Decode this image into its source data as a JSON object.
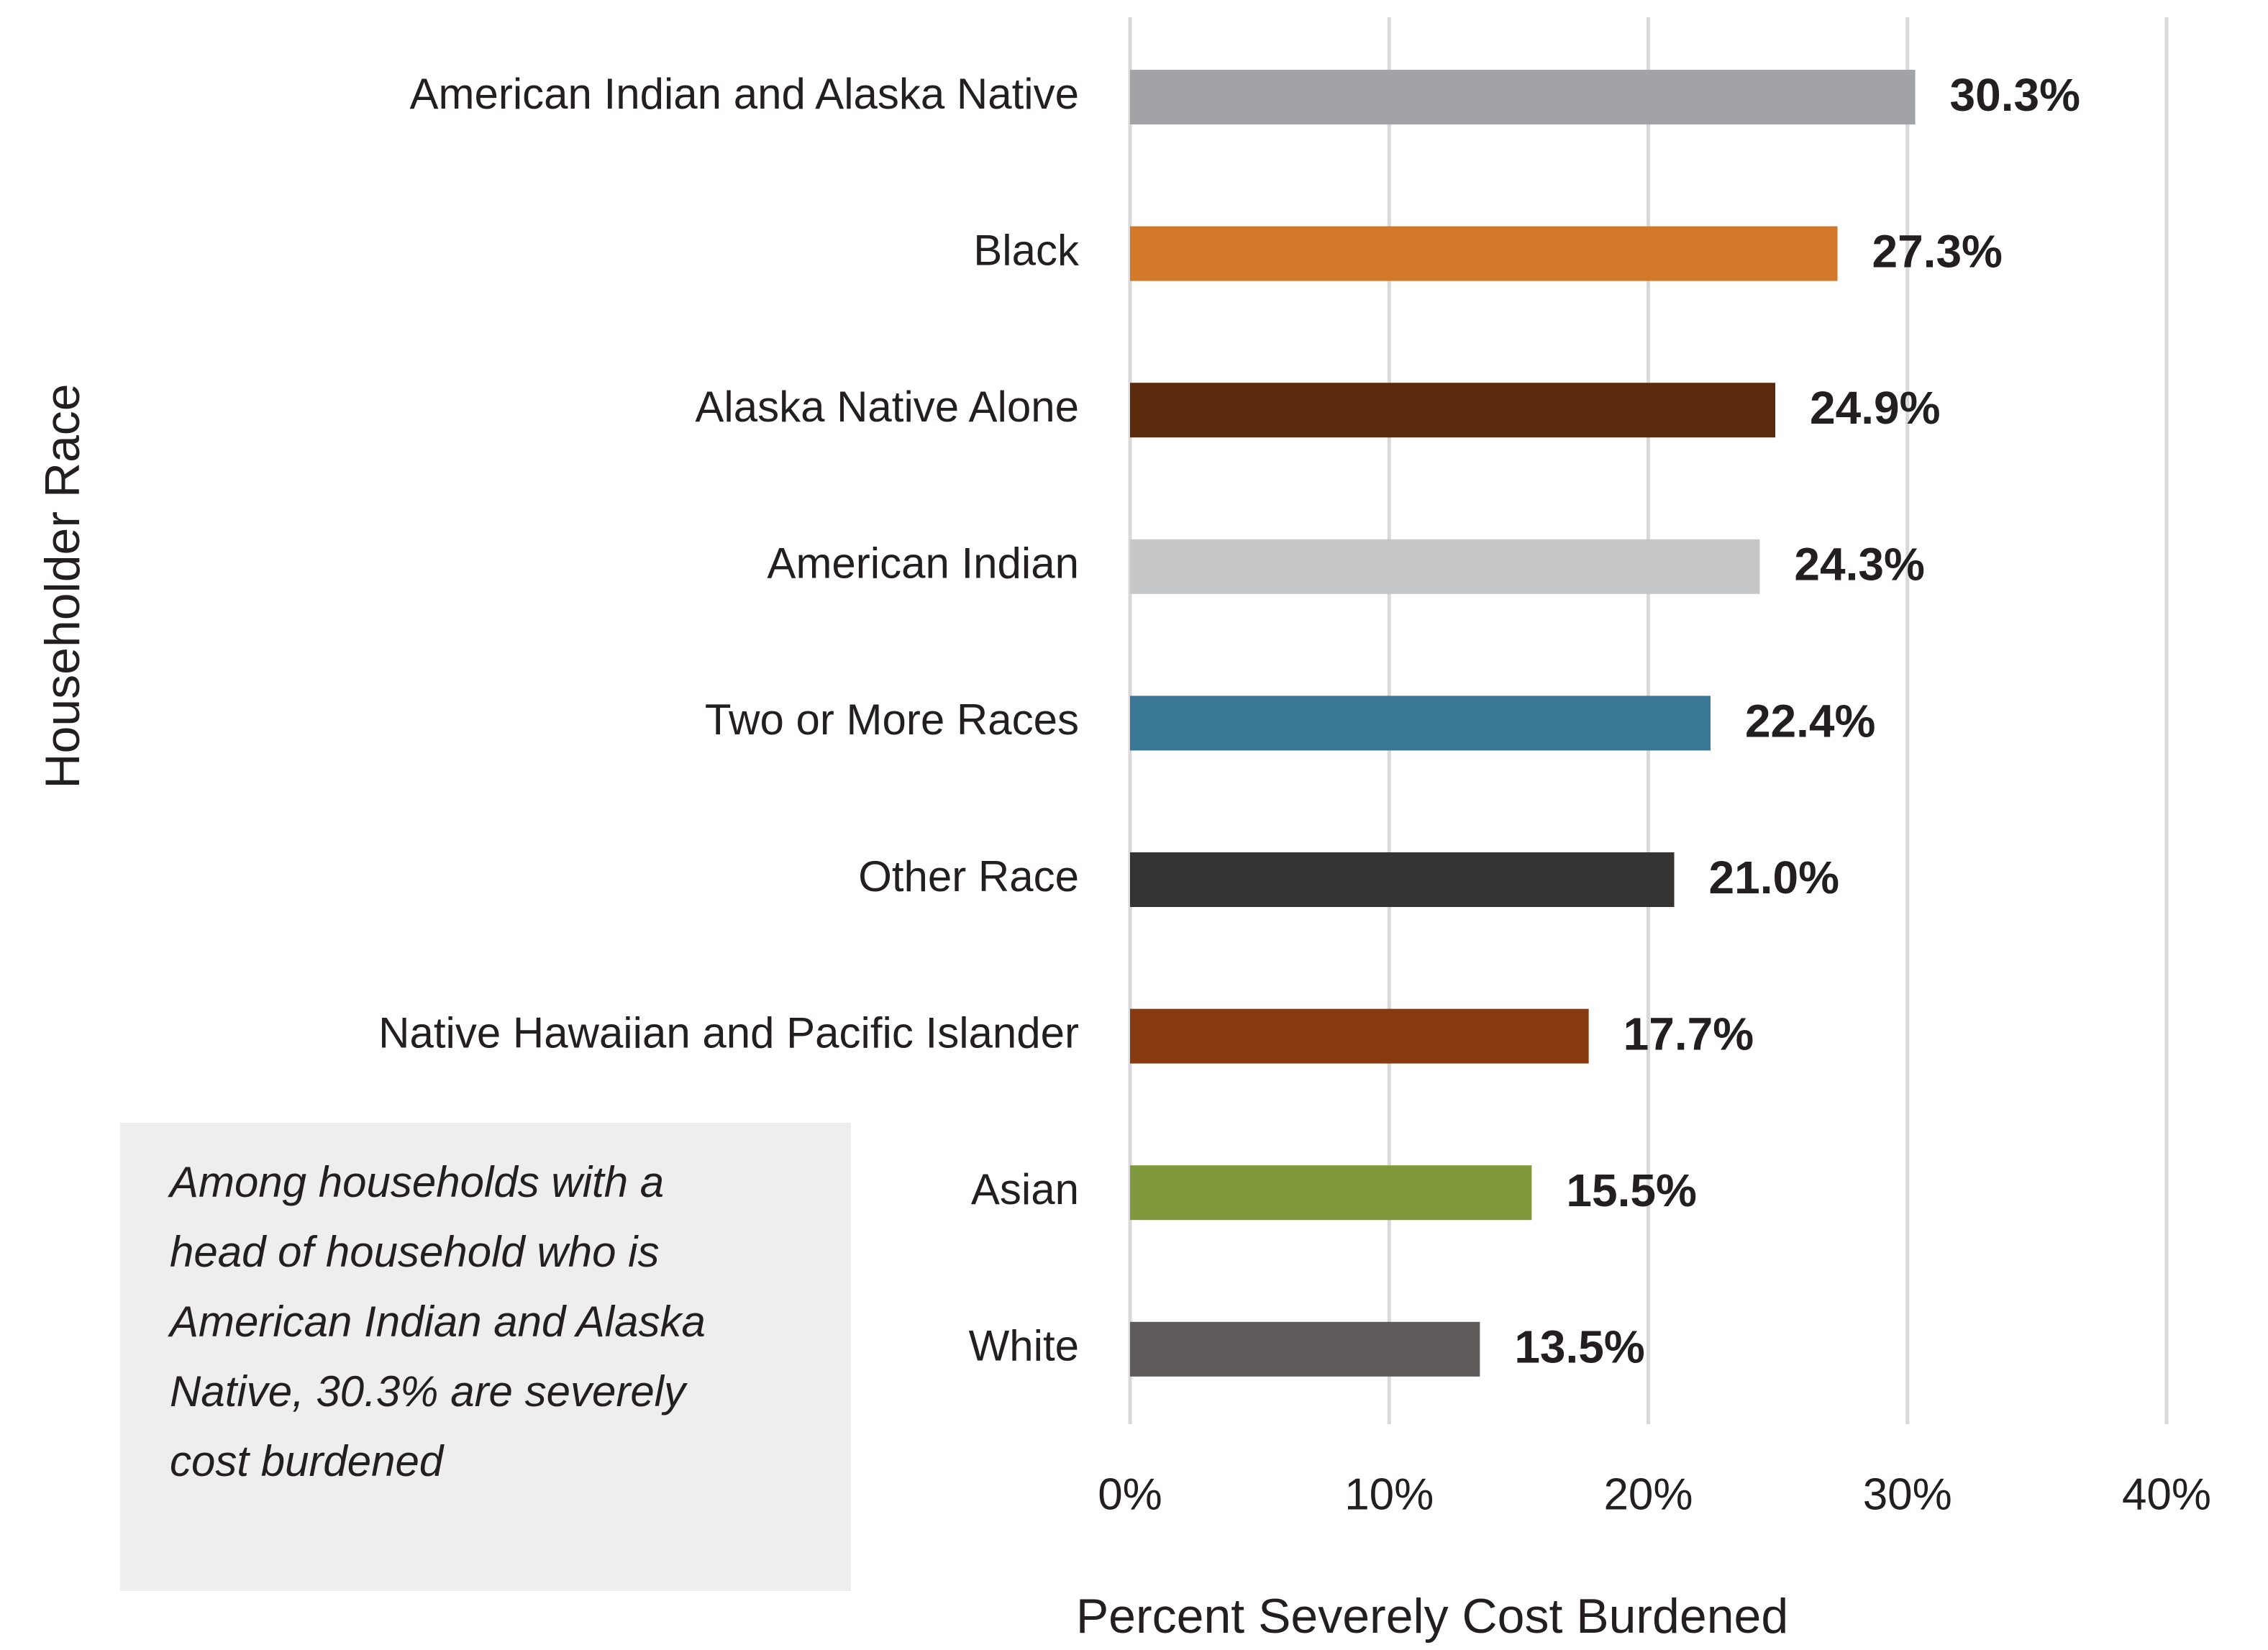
{
  "chart_data": {
    "type": "barh",
    "categories": [
      "American Indian and Alaska Native",
      "Black",
      "Alaska Native Alone",
      "American Indian",
      "Two or More Races",
      "Other Race",
      "Native Hawaiian and Pacific Islander",
      "Asian",
      "White"
    ],
    "values": [
      30.3,
      27.3,
      24.9,
      24.3,
      22.4,
      21.0,
      17.7,
      15.5,
      13.5
    ],
    "value_labels": [
      "30.3%",
      "27.3%",
      "24.9%",
      "24.3%",
      "22.4%",
      "21.0%",
      "17.7%",
      "15.5%",
      "13.5%"
    ],
    "colors": [
      "#a2a3a7",
      "#d27828",
      "#5a2a0c",
      "#c6c7c9",
      "#3a7794",
      "#353433",
      "#873a10",
      "#80983c",
      "#5f5b5a"
    ],
    "xlim": [
      0,
      40
    ],
    "xticks": [
      {
        "value": 0,
        "label": "0%"
      },
      {
        "value": 10,
        "label": "10%"
      },
      {
        "value": 20,
        "label": "20%"
      },
      {
        "value": 30,
        "label": "30%"
      },
      {
        "value": 40,
        "label": "40%"
      }
    ],
    "grid": true,
    "xlabel": "Percent Severely Cost Burdened",
    "ylabel": "Householder Race",
    "annotation": [
      "Among households with a",
      "head of household who is",
      "American Indian and Alaska",
      "Native, 30.3% are severely",
      "cost burdened"
    ]
  }
}
